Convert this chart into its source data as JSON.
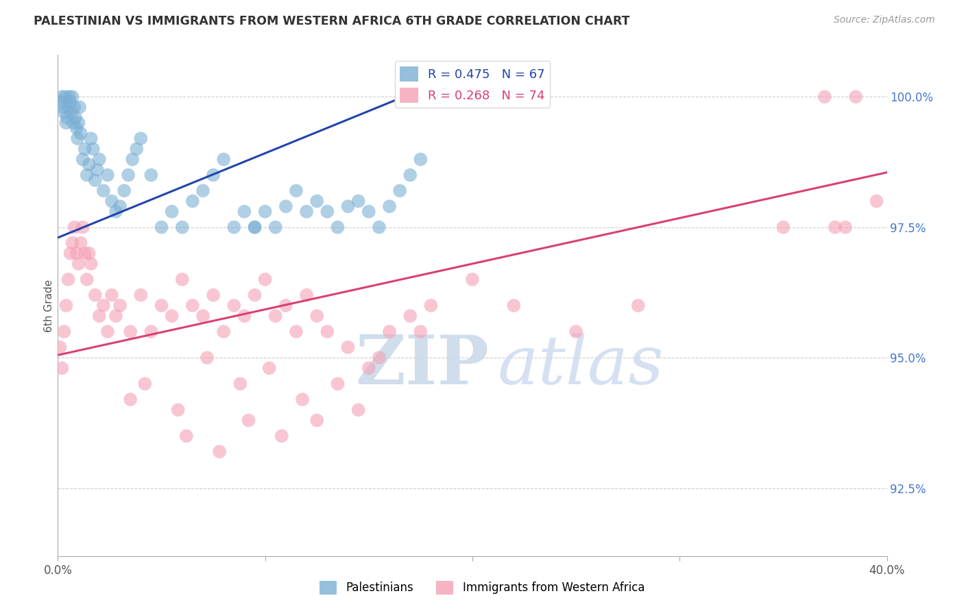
{
  "title": "PALESTINIAN VS IMMIGRANTS FROM WESTERN AFRICA 6TH GRADE CORRELATION CHART",
  "source": "Source: ZipAtlas.com",
  "ylabel": "6th Grade",
  "ylabel_ticks": [
    "92.5%",
    "95.0%",
    "97.5%",
    "100.0%"
  ],
  "ylabel_tick_values": [
    92.5,
    95.0,
    97.5,
    100.0
  ],
  "xlim": [
    0.0,
    40.0
  ],
  "ylim": [
    91.2,
    100.8
  ],
  "blue_R": 0.475,
  "blue_N": 67,
  "pink_R": 0.268,
  "pink_N": 74,
  "blue_color": "#7BAFD4",
  "pink_color": "#F4A0B5",
  "blue_line_color": "#2244AA",
  "pink_line_color": "#D94070",
  "blue_trend_x": [
    0.0,
    17.0
  ],
  "blue_trend_y": [
    97.3,
    100.05
  ],
  "pink_trend_x": [
    0.0,
    40.0
  ],
  "pink_trend_y": [
    95.05,
    98.55
  ],
  "legend_blue_label": "Palestinians",
  "legend_pink_label": "Immigrants from Western Africa",
  "watermark_zip": "ZIP",
  "watermark_atlas": "atlas",
  "blue_x": [
    0.15,
    0.2,
    0.25,
    0.3,
    0.35,
    0.4,
    0.45,
    0.5,
    0.55,
    0.6,
    0.65,
    0.7,
    0.75,
    0.8,
    0.85,
    0.9,
    0.95,
    1.0,
    1.05,
    1.1,
    1.2,
    1.3,
    1.4,
    1.5,
    1.6,
    1.7,
    1.8,
    1.9,
    2.0,
    2.2,
    2.4,
    2.6,
    2.8,
    3.0,
    3.2,
    3.4,
    3.6,
    3.8,
    4.0,
    4.5,
    5.0,
    5.5,
    6.0,
    6.5,
    7.0,
    7.5,
    8.0,
    8.5,
    9.0,
    9.5,
    10.0,
    10.5,
    11.0,
    11.5,
    12.0,
    12.5,
    13.0,
    13.5,
    14.0,
    14.5,
    15.0,
    15.5,
    16.0,
    16.5,
    17.0,
    17.5,
    9.5
  ],
  "blue_y": [
    99.9,
    100.0,
    99.8,
    99.7,
    100.0,
    99.5,
    99.6,
    99.8,
    100.0,
    99.9,
    99.7,
    100.0,
    99.5,
    99.8,
    99.6,
    99.4,
    99.2,
    99.5,
    99.8,
    99.3,
    98.8,
    99.0,
    98.5,
    98.7,
    99.2,
    99.0,
    98.4,
    98.6,
    98.8,
    98.2,
    98.5,
    98.0,
    97.8,
    97.9,
    98.2,
    98.5,
    98.8,
    99.0,
    99.2,
    98.5,
    97.5,
    97.8,
    97.5,
    98.0,
    98.2,
    98.5,
    98.8,
    97.5,
    97.8,
    97.5,
    97.8,
    97.5,
    97.9,
    98.2,
    97.8,
    98.0,
    97.8,
    97.5,
    97.9,
    98.0,
    97.8,
    97.5,
    97.9,
    98.2,
    98.5,
    98.8,
    97.5
  ],
  "pink_x": [
    0.1,
    0.2,
    0.3,
    0.4,
    0.5,
    0.6,
    0.7,
    0.8,
    0.9,
    1.0,
    1.1,
    1.2,
    1.3,
    1.4,
    1.5,
    1.6,
    1.8,
    2.0,
    2.2,
    2.4,
    2.6,
    2.8,
    3.0,
    3.5,
    4.0,
    4.5,
    5.0,
    5.5,
    6.0,
    6.5,
    7.0,
    7.5,
    8.0,
    8.5,
    9.0,
    9.5,
    10.0,
    10.5,
    11.0,
    11.5,
    12.0,
    12.5,
    13.0,
    14.0,
    15.0,
    16.0,
    17.0,
    18.0,
    20.0,
    22.0,
    25.0,
    28.0,
    35.0,
    37.5,
    38.0,
    39.5,
    3.5,
    4.2,
    5.8,
    7.2,
    8.8,
    10.2,
    11.8,
    13.5,
    15.5,
    17.5,
    6.2,
    7.8,
    9.2,
    10.8,
    12.5,
    14.5,
    37.0,
    38.5
  ],
  "pink_y": [
    95.2,
    94.8,
    95.5,
    96.0,
    96.5,
    97.0,
    97.2,
    97.5,
    97.0,
    96.8,
    97.2,
    97.5,
    97.0,
    96.5,
    97.0,
    96.8,
    96.2,
    95.8,
    96.0,
    95.5,
    96.2,
    95.8,
    96.0,
    95.5,
    96.2,
    95.5,
    96.0,
    95.8,
    96.5,
    96.0,
    95.8,
    96.2,
    95.5,
    96.0,
    95.8,
    96.2,
    96.5,
    95.8,
    96.0,
    95.5,
    96.2,
    95.8,
    95.5,
    95.2,
    94.8,
    95.5,
    95.8,
    96.0,
    96.5,
    96.0,
    95.5,
    96.0,
    97.5,
    97.5,
    97.5,
    98.0,
    94.2,
    94.5,
    94.0,
    95.0,
    94.5,
    94.8,
    94.2,
    94.5,
    95.0,
    95.5,
    93.5,
    93.2,
    93.8,
    93.5,
    93.8,
    94.0,
    100.0,
    100.0
  ]
}
